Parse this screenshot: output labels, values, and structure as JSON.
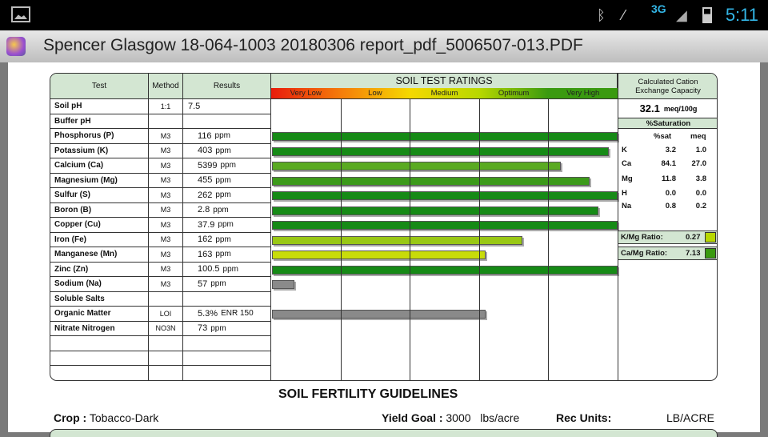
{
  "status_bar": {
    "time": "5:11",
    "network": "3G",
    "icons": [
      "gallery-icon",
      "bluetooth-icon",
      "mute-icon",
      "signal-icon",
      "battery-icon"
    ]
  },
  "app_bar": {
    "title": "Spencer Glasgow 18-064-1003 20180306 report_pdf_5006507-013.PDF"
  },
  "table": {
    "headers": {
      "test": "Test",
      "method": "Method",
      "results": "Results",
      "ratings": "SOIL TEST RATINGS",
      "cec": "Calculated Cation Exchange Capacity"
    },
    "ratings": [
      {
        "label": "Very Low",
        "color": "#e81c0c"
      },
      {
        "label": "Low",
        "color": "#f57c0a"
      },
      {
        "label": "Medium",
        "color": "#f5d800"
      },
      {
        "label": "Optimum",
        "color": "#b8d800"
      },
      {
        "label": "Very High",
        "color": "#3a9a10"
      }
    ],
    "rows": [
      {
        "test": "Soil pH",
        "method": "1:1",
        "value": "7.5",
        "unit": ""
      },
      {
        "test": "Buffer pH",
        "method": "",
        "value": "",
        "unit": ""
      },
      {
        "test": "Phosphorus (P)",
        "method": "M3",
        "value": "116",
        "unit": "ppm",
        "level": 1.0,
        "color": "#168a16"
      },
      {
        "test": "Potassium (K)",
        "method": "M3",
        "value": "403",
        "unit": "ppm",
        "level": 0.975,
        "color": "#168a16"
      },
      {
        "test": "Calcium (Ca)",
        "method": "M3",
        "value": "5399",
        "unit": "ppm",
        "level": 0.836,
        "color": "#5aaa22"
      },
      {
        "test": "Magnesium (Mg)",
        "method": "M3",
        "value": "455",
        "unit": "ppm",
        "level": 0.919,
        "color": "#3c9a1a"
      },
      {
        "test": "Sulfur (S)",
        "method": "M3",
        "value": "262",
        "unit": "ppm",
        "level": 1.0,
        "color": "#168a16"
      },
      {
        "test": "Boron (B)",
        "method": "M3",
        "value": "2.8",
        "unit": "ppm",
        "level": 0.945,
        "color": "#168a16"
      },
      {
        "test": "Copper (Cu)",
        "method": "M3",
        "value": "37.9",
        "unit": "ppm",
        "level": 1.0,
        "color": "#168a16"
      },
      {
        "test": "Iron (Fe)",
        "method": "M3",
        "value": "162",
        "unit": "ppm",
        "level": 0.725,
        "color": "#99c814"
      },
      {
        "test": "Manganese (Mn)",
        "method": "M3",
        "value": "163",
        "unit": "ppm",
        "level": 0.617,
        "color": "#c8dc0a"
      },
      {
        "test": "Zinc (Zn)",
        "method": "M3",
        "value": "100.5",
        "unit": "ppm",
        "level": 1.0,
        "color": "#168a16"
      },
      {
        "test": "Sodium (Na)",
        "method": "M3",
        "value": "57",
        "unit": "ppm",
        "level": 0.065,
        "color": "#8a8a8a"
      },
      {
        "test": "Soluble Salts",
        "method": "",
        "value": "",
        "unit": ""
      },
      {
        "test": "Organic Matter",
        "method": "LOI",
        "value": "5.3%",
        "unit": "ENR 150",
        "level": 0.617,
        "color": "#8a8a8a"
      },
      {
        "test": "Nitrate Nitrogen",
        "method": "NO3N",
        "value": "73",
        "unit": "ppm"
      },
      {
        "test": "",
        "method": "",
        "value": "",
        "unit": ""
      },
      {
        "test": "",
        "method": "",
        "value": "",
        "unit": ""
      },
      {
        "test": "",
        "method": "",
        "value": "",
        "unit": ""
      }
    ],
    "cec": {
      "value": "32.1",
      "unit": "meq/100g",
      "saturation_title": "%Saturation",
      "col_sat": "%sat",
      "col_meq": "meq",
      "rows": [
        {
          "el": "K",
          "sat": "3.2",
          "meq": "1.0"
        },
        {
          "el": "Ca",
          "sat": "84.1",
          "meq": "27.0"
        },
        {
          "el": "Mg",
          "sat": "11.8",
          "meq": "3.8"
        },
        {
          "el": "H",
          "sat": "0.0",
          "meq": "0.0"
        },
        {
          "el": "Na",
          "sat": "0.8",
          "meq": "0.2"
        }
      ],
      "kmg_label": "K/Mg Ratio:",
      "kmg_value": "0.27",
      "kmg_color": "#b8d800",
      "camg_label": "Ca/Mg Ratio:",
      "camg_value": "7.13",
      "camg_color": "#3a9a10"
    }
  },
  "guidelines": {
    "title": "SOIL FERTILITY GUIDELINES",
    "crop_label": "Crop :",
    "crop": "Tobacco-Dark",
    "yield_label": "Yield Goal :",
    "yield": "3000",
    "yield_unit": "lbs/acre",
    "rec_label": "Rec Units:",
    "rec": "LB/ACRE"
  }
}
